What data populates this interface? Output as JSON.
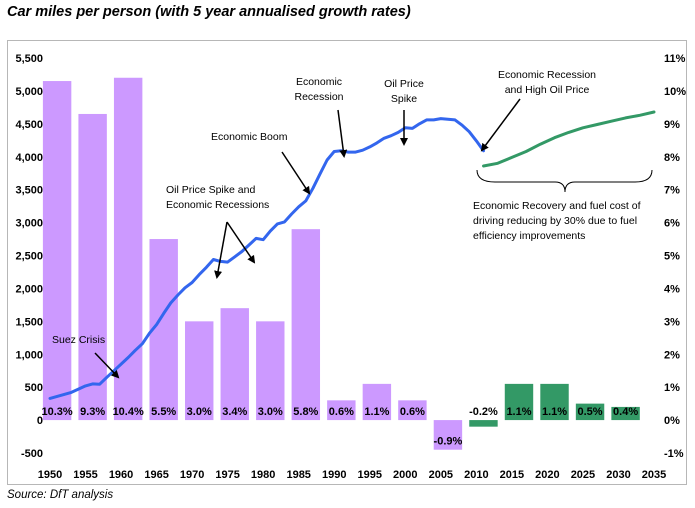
{
  "title": "Car miles per person (with 5 year annualised growth rates)",
  "source": "Source: DfT analysis",
  "chart_data": {
    "type": "bar+line",
    "left_axis": {
      "min": -500,
      "max": 5500,
      "step": 500,
      "ticks": [
        "-500",
        "0",
        "500",
        "1,000",
        "1,500",
        "2,000",
        "2,500",
        "3,000",
        "3,500",
        "4,000",
        "4,500",
        "5,000",
        "5,500"
      ]
    },
    "right_axis": {
      "min": -1,
      "max": 11,
      "step": 1,
      "ticks": [
        "-1%",
        "0%",
        "1%",
        "2%",
        "3%",
        "4%",
        "5%",
        "6%",
        "7%",
        "8%",
        "9%",
        "10%",
        "11%"
      ]
    },
    "x_axis": {
      "min": 1950,
      "max": 2035,
      "ticks": [
        "1950",
        "1955",
        "1960",
        "1965",
        "1970",
        "1975",
        "1980",
        "1985",
        "1990",
        "1995",
        "2000",
        "2005",
        "2010",
        "2015",
        "2020",
        "2025",
        "2030",
        "2035"
      ]
    },
    "grid": false,
    "bars": [
      {
        "center": 1951,
        "value": 10.3,
        "label": "10.3%",
        "color": "#cc99ff"
      },
      {
        "center": 1956,
        "value": 9.3,
        "label": "9.3%",
        "color": "#cc99ff"
      },
      {
        "center": 1961,
        "value": 10.4,
        "label": "10.4%",
        "color": "#cc99ff"
      },
      {
        "center": 1966,
        "value": 5.5,
        "label": "5.5%",
        "color": "#cc99ff"
      },
      {
        "center": 1971,
        "value": 3.0,
        "label": "3.0%",
        "color": "#cc99ff"
      },
      {
        "center": 1976,
        "value": 3.4,
        "label": "3.4%",
        "color": "#cc99ff"
      },
      {
        "center": 1981,
        "value": 3.0,
        "label": "3.0%",
        "color": "#cc99ff"
      },
      {
        "center": 1986,
        "value": 5.8,
        "label": "5.8%",
        "color": "#cc99ff"
      },
      {
        "center": 1991,
        "value": 0.6,
        "label": "0.6%",
        "color": "#cc99ff"
      },
      {
        "center": 1996,
        "value": 1.1,
        "label": "1.1%",
        "color": "#cc99ff"
      },
      {
        "center": 2001,
        "value": 0.6,
        "label": "0.6%",
        "color": "#cc99ff"
      },
      {
        "center": 2006,
        "value": -0.9,
        "label": "-0.9%",
        "color": "#cc99ff"
      },
      {
        "center": 2011,
        "value": -0.2,
        "label": "-0.2%",
        "color": "#339966"
      },
      {
        "center": 2016,
        "value": 1.1,
        "label": "1.1%",
        "color": "#339966"
      },
      {
        "center": 2021,
        "value": 1.1,
        "label": "1.1%",
        "color": "#339966"
      },
      {
        "center": 2026,
        "value": 0.5,
        "label": "0.5%",
        "color": "#339966"
      },
      {
        "center": 2031,
        "value": 0.4,
        "label": "0.4%",
        "color": "#339966"
      }
    ],
    "actual_line": {
      "color": "#3366ee",
      "x": [
        1950,
        1951,
        1952,
        1953,
        1954,
        1955,
        1956,
        1957,
        1958,
        1959,
        1960,
        1961,
        1962,
        1963,
        1964,
        1965,
        1966,
        1967,
        1968,
        1969,
        1970,
        1971,
        1972,
        1973,
        1974,
        1975,
        1976,
        1977,
        1978,
        1979,
        1980,
        1981,
        1982,
        1983,
        1984,
        1985,
        1986,
        1987,
        1988,
        1989,
        1990,
        1991,
        1992,
        1993,
        1994,
        1995,
        1996,
        1997,
        1998,
        1999,
        2000,
        2001,
        2002,
        2003,
        2004,
        2005,
        2006,
        2007,
        2008,
        2009,
        2010,
        2011
      ],
      "y": [
        330,
        360,
        390,
        420,
        470,
        520,
        550,
        545,
        650,
        750,
        850,
        950,
        1060,
        1160,
        1320,
        1450,
        1620,
        1780,
        1900,
        2010,
        2090,
        2210,
        2320,
        2440,
        2410,
        2400,
        2480,
        2560,
        2660,
        2760,
        2740,
        2870,
        2980,
        3010,
        3130,
        3240,
        3330,
        3520,
        3740,
        3950,
        4080,
        4090,
        4070,
        4070,
        4100,
        4150,
        4210,
        4280,
        4320,
        4370,
        4440,
        4430,
        4500,
        4560,
        4560,
        4580,
        4570,
        4560,
        4480,
        4380,
        4240,
        4090
      ]
    },
    "forecast_line": {
      "color": "#339966",
      "x": [
        2011,
        2013,
        2015,
        2017,
        2019,
        2021,
        2023,
        2025,
        2027,
        2029,
        2031,
        2033,
        2035
      ],
      "y": [
        3860,
        3900,
        3990,
        4080,
        4190,
        4290,
        4370,
        4440,
        4490,
        4540,
        4590,
        4630,
        4680
      ]
    },
    "annotations": [
      {
        "lines": [
          "Suez Crisis"
        ]
      },
      {
        "lines": [
          "Oil Price Spike and",
          "Economic Recessions"
        ]
      },
      {
        "lines": [
          "Economic Boom"
        ]
      },
      {
        "lines": [
          "Economic",
          "Recession"
        ]
      },
      {
        "lines": [
          "Oil Price",
          "Spike"
        ]
      },
      {
        "lines": [
          "Economic Recession",
          "and High Oil Price"
        ]
      },
      {
        "lines": [
          "Economic Recovery and fuel cost of",
          "driving reducing by 30% due to fuel",
          "efficiency improvements"
        ]
      }
    ]
  }
}
